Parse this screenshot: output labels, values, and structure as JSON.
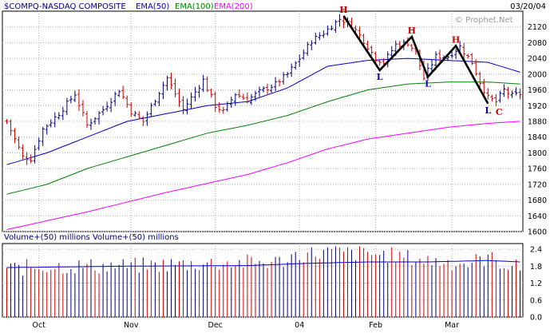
{
  "chart_data": {
    "type": "ohlc",
    "header": {
      "symbol": "$COMPQ-NASDAQ COMPOSITE",
      "ema50_label": "EMA(50)",
      "ema100_label": "EMA(100)",
      "ema200_label": "EMA(200)",
      "date": "03/20/04",
      "watermark": "© Prophet.Net"
    },
    "price_axis": {
      "ylim": [
        1600,
        2160
      ],
      "ticks": [
        1600,
        1640,
        1680,
        1720,
        1760,
        1800,
        1840,
        1880,
        1920,
        1960,
        2000,
        2040,
        2080,
        2120
      ]
    },
    "volume_panel": {
      "label": "Volume+(50) millions   Volume+(50) millions",
      "ylim": [
        0,
        2.6
      ],
      "ticks": [
        "0.0",
        "0.6",
        "1.2",
        "1.8",
        "2.4"
      ]
    },
    "x_labels": [
      {
        "label": "Oct",
        "bar": 8
      },
      {
        "label": "Nov",
        "bar": 31
      },
      {
        "label": "Dec",
        "bar": 52
      },
      {
        "label": "04",
        "bar": 73
      },
      {
        "label": "Feb",
        "bar": 92
      },
      {
        "label": "Mar",
        "bar": 111
      }
    ],
    "bar_count": 129,
    "price_keys": [
      [
        0,
        1880
      ],
      [
        4,
        1790
      ],
      [
        6,
        1785
      ],
      [
        9,
        1860
      ],
      [
        13,
        1900
      ],
      [
        17,
        1950
      ],
      [
        20,
        1870
      ],
      [
        24,
        1910
      ],
      [
        28,
        1960
      ],
      [
        31,
        1905
      ],
      [
        34,
        1880
      ],
      [
        38,
        1955
      ],
      [
        40,
        1990
      ],
      [
        44,
        1910
      ],
      [
        47,
        1955
      ],
      [
        49,
        1985
      ],
      [
        52,
        1920
      ],
      [
        54,
        1905
      ],
      [
        57,
        1950
      ],
      [
        60,
        1935
      ],
      [
        63,
        1955
      ],
      [
        67,
        1975
      ],
      [
        70,
        2000
      ],
      [
        73,
        2040
      ],
      [
        76,
        2085
      ],
      [
        79,
        2105
      ],
      [
        83,
        2140
      ],
      [
        86,
        2125
      ],
      [
        89,
        2085
      ],
      [
        92,
        2040
      ],
      [
        94,
        2030
      ],
      [
        97,
        2075
      ],
      [
        100,
        2080
      ],
      [
        102,
        2055
      ],
      [
        104,
        1990
      ],
      [
        107,
        2045
      ],
      [
        110,
        2045
      ],
      [
        113,
        2070
      ],
      [
        116,
        2030
      ],
      [
        118,
        1980
      ],
      [
        120,
        1940
      ],
      [
        122,
        1930
      ],
      [
        124,
        1960
      ],
      [
        126,
        1945
      ],
      [
        128,
        1950
      ]
    ],
    "volume_keys": [
      [
        0,
        1.7
      ],
      [
        10,
        1.8
      ],
      [
        30,
        1.8
      ],
      [
        50,
        1.9
      ],
      [
        68,
        1.95
      ],
      [
        72,
        2.2
      ],
      [
        80,
        2.3
      ],
      [
        95,
        2.2
      ],
      [
        105,
        2.0
      ],
      [
        115,
        1.9
      ],
      [
        120,
        2.1
      ],
      [
        128,
        1.7
      ]
    ],
    "ema": [
      {
        "name": "EMA(50)",
        "color": "#0000cc",
        "keys": [
          [
            0,
            1770
          ],
          [
            10,
            1800
          ],
          [
            20,
            1840
          ],
          [
            30,
            1880
          ],
          [
            40,
            1900
          ],
          [
            50,
            1920
          ],
          [
            60,
            1930
          ],
          [
            70,
            1965
          ],
          [
            80,
            2020
          ],
          [
            90,
            2035
          ],
          [
            100,
            2040
          ],
          [
            110,
            2035
          ],
          [
            120,
            2030
          ],
          [
            128,
            2005
          ]
        ]
      },
      {
        "name": "EMA(100)",
        "color": "#008000",
        "keys": [
          [
            0,
            1695
          ],
          [
            10,
            1720
          ],
          [
            20,
            1760
          ],
          [
            30,
            1790
          ],
          [
            40,
            1820
          ],
          [
            50,
            1850
          ],
          [
            60,
            1870
          ],
          [
            70,
            1895
          ],
          [
            80,
            1930
          ],
          [
            90,
            1960
          ],
          [
            100,
            1975
          ],
          [
            110,
            1980
          ],
          [
            120,
            1980
          ],
          [
            128,
            1975
          ]
        ]
      },
      {
        "name": "EMA(200)",
        "color": "#ff00ff",
        "keys": [
          [
            0,
            1605
          ],
          [
            20,
            1650
          ],
          [
            40,
            1700
          ],
          [
            60,
            1745
          ],
          [
            70,
            1775
          ],
          [
            80,
            1810
          ],
          [
            90,
            1835
          ],
          [
            100,
            1850
          ],
          [
            110,
            1865
          ],
          [
            120,
            1875
          ],
          [
            128,
            1880
          ]
        ]
      }
    ],
    "volume_avg_keys": [
      [
        0,
        1.75
      ],
      [
        30,
        1.8
      ],
      [
        60,
        1.82
      ],
      [
        75,
        1.9
      ],
      [
        90,
        1.95
      ],
      [
        105,
        1.95
      ],
      [
        120,
        2.0
      ],
      [
        128,
        1.95
      ]
    ],
    "pattern": {
      "points": [
        {
          "bar": 84,
          "price": 2148,
          "label": "H"
        },
        {
          "bar": 93,
          "price": 2010,
          "label": "L"
        },
        {
          "bar": 101,
          "price": 2095,
          "label": "H"
        },
        {
          "bar": 105,
          "price": 1993,
          "label": "L"
        },
        {
          "bar": 112,
          "price": 2072,
          "label": "H"
        },
        {
          "bar": 120,
          "price": 1925,
          "label": "L"
        }
      ],
      "c_label": "C"
    },
    "colors": {
      "up": "#000080",
      "down": "#cc0000",
      "pattern_line": "#000000",
      "h_label": "#cc0000",
      "l_label": "#0000cc",
      "grid": "#b0b0b0"
    }
  }
}
